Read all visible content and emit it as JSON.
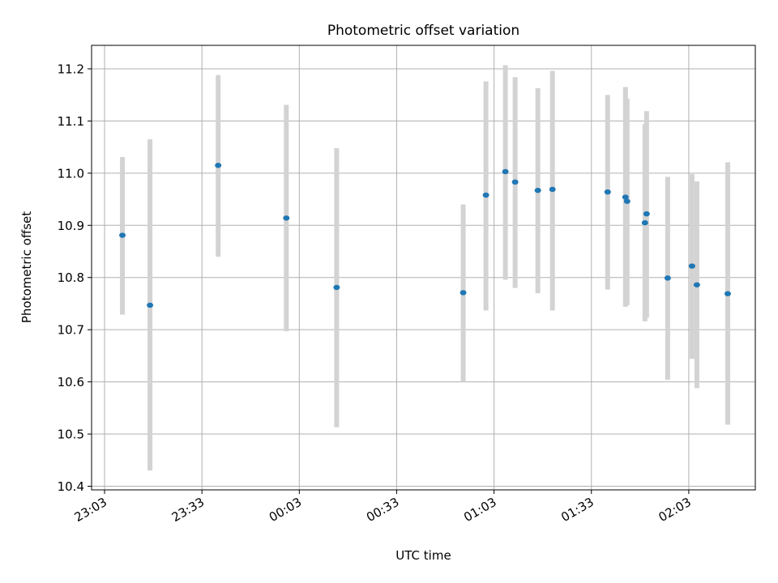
{
  "chart_data": {
    "type": "scatter",
    "title": "Photometric offset variation",
    "xlabel": "UTC time",
    "ylabel": "Photometric offset",
    "x_ticks": [
      "23:03",
      "23:33",
      "00:03",
      "00:33",
      "01:03",
      "01:33",
      "02:03"
    ],
    "x_tick_minutes": [
      -57,
      -27,
      3,
      33,
      63,
      93,
      123
    ],
    "y_ticks": [
      "10.4",
      "10.5",
      "10.6",
      "10.7",
      "10.8",
      "10.9",
      "11.0",
      "11.1",
      "11.2"
    ],
    "xlim_minutes": [
      -61,
      143.5
    ],
    "ylim": [
      10.393,
      11.245
    ],
    "grid": true,
    "colors": {
      "point": "#1f77b4",
      "error_bar": "#d3d3d3",
      "grid": "#b0b0b0"
    },
    "series": [
      {
        "points": [
          {
            "t": "23:08:30",
            "y": 10.881,
            "lo": 10.729,
            "hi": 11.031
          },
          {
            "t": "23:17:00",
            "y": 10.747,
            "lo": 10.43,
            "hi": 11.065
          },
          {
            "t": "23:38:00",
            "y": 11.015,
            "lo": 10.84,
            "hi": 11.188
          },
          {
            "t": "23:59:00",
            "y": 10.914,
            "lo": 10.697,
            "hi": 11.131
          },
          {
            "t": "00:14:30",
            "y": 10.781,
            "lo": 10.513,
            "hi": 11.048
          },
          {
            "t": "00:53:30",
            "y": 10.771,
            "lo": 10.6,
            "hi": 10.94
          },
          {
            "t": "01:00:30",
            "y": 10.958,
            "lo": 10.737,
            "hi": 11.176
          },
          {
            "t": "01:06:30",
            "y": 11.003,
            "lo": 10.796,
            "hi": 11.207
          },
          {
            "t": "01:09:30",
            "y": 10.983,
            "lo": 10.78,
            "hi": 11.184
          },
          {
            "t": "01:16:30",
            "y": 10.967,
            "lo": 10.77,
            "hi": 11.163
          },
          {
            "t": "01:21:00",
            "y": 10.969,
            "lo": 10.737,
            "hi": 11.196
          },
          {
            "t": "01:38:00",
            "y": 10.964,
            "lo": 10.777,
            "hi": 11.15
          },
          {
            "t": "01:43:30",
            "y": 10.954,
            "lo": 10.744,
            "hi": 11.165
          },
          {
            "t": "01:44:00",
            "y": 10.946,
            "lo": 10.747,
            "hi": 11.143
          },
          {
            "t": "01:49:30",
            "y": 10.905,
            "lo": 10.716,
            "hi": 11.094
          },
          {
            "t": "01:50:00",
            "y": 10.922,
            "lo": 10.723,
            "hi": 11.119
          },
          {
            "t": "01:56:30",
            "y": 10.799,
            "lo": 10.604,
            "hi": 10.993
          },
          {
            "t": "02:04:00",
            "y": 10.822,
            "lo": 10.644,
            "hi": 10.998
          },
          {
            "t": "02:05:30",
            "y": 10.786,
            "lo": 10.588,
            "hi": 10.984
          },
          {
            "t": "02:15:00",
            "y": 10.769,
            "lo": 10.518,
            "hi": 11.021
          }
        ]
      }
    ]
  }
}
